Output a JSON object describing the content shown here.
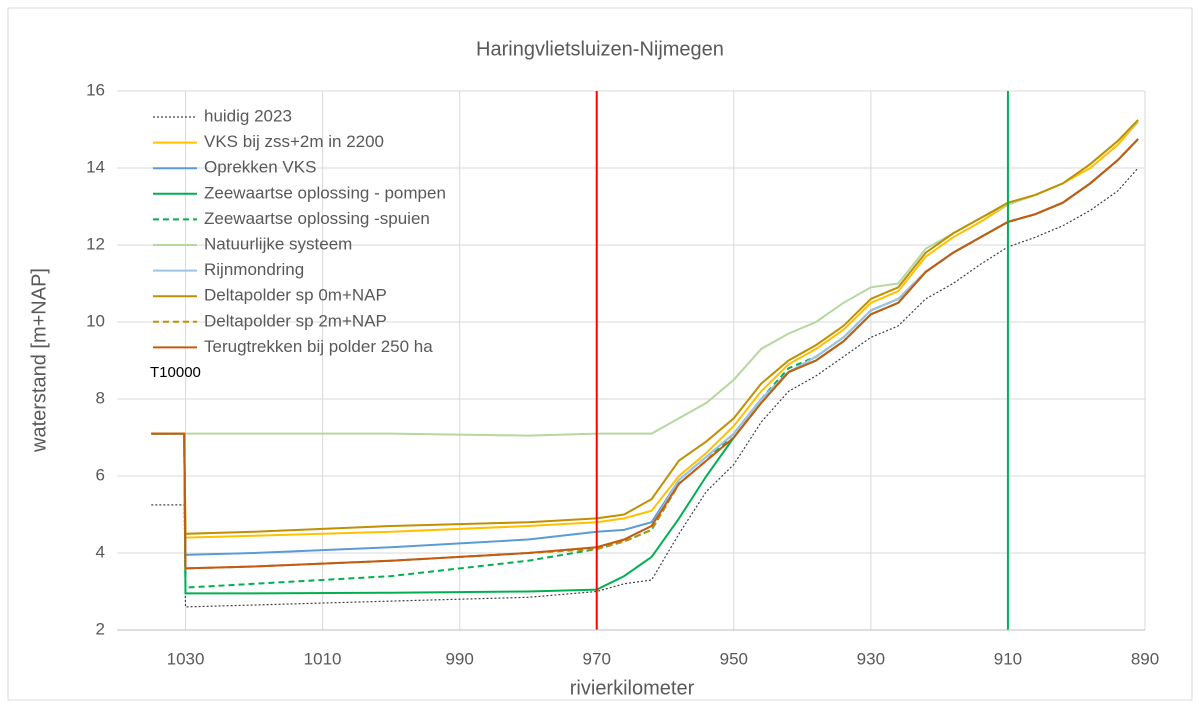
{
  "chart_data": {
    "type": "line",
    "title": "Haringvlietsluizen-Nijmegen",
    "x_label": "rivierkilometer",
    "y_label": "waterstand [m+NAP]",
    "annotation": "T10000",
    "x": [
      1035,
      1030.2,
      1030,
      1020,
      1000,
      980,
      970,
      966,
      962,
      958,
      954,
      950,
      946,
      942,
      938,
      934,
      930,
      926,
      922,
      918,
      914,
      910,
      906,
      902,
      898,
      894,
      891
    ],
    "series": [
      {
        "name": "huidig 2023",
        "color": "#404040",
        "dash": "dotted",
        "values": [
          5.25,
          5.25,
          2.6,
          2.65,
          2.75,
          2.85,
          3.0,
          3.2,
          3.3,
          4.5,
          5.6,
          6.3,
          7.4,
          8.2,
          8.6,
          9.1,
          9.6,
          9.9,
          10.6,
          11.0,
          11.5,
          11.95,
          12.2,
          12.5,
          12.9,
          13.4,
          14.0
        ]
      },
      {
        "name": "VKS bij zss+2m in 2200",
        "color": "#ffc000",
        "dash": "solid",
        "values": [
          7.1,
          7.1,
          4.4,
          4.45,
          4.55,
          4.7,
          4.8,
          4.9,
          5.1,
          6.0,
          6.6,
          7.3,
          8.2,
          8.9,
          9.3,
          9.8,
          10.5,
          10.8,
          11.7,
          12.2,
          12.6,
          13.05,
          13.3,
          13.6,
          14.0,
          14.6,
          15.2
        ]
      },
      {
        "name": "Oprekken VKS",
        "color": "#5b9bd5",
        "dash": "solid",
        "values": [
          7.1,
          7.1,
          3.95,
          4.0,
          4.15,
          4.35,
          4.55,
          4.6,
          4.8,
          5.9,
          6.5,
          7.1,
          8.0,
          8.7,
          9.1,
          9.6,
          10.3,
          10.6,
          11.3,
          11.8,
          12.2,
          12.6,
          12.8,
          13.1,
          13.6,
          14.2,
          14.75
        ]
      },
      {
        "name": "Zeewaartse oplossing - pompen",
        "color": "#00b050",
        "dash": "solid",
        "values": [
          7.1,
          7.1,
          2.95,
          2.95,
          2.97,
          3.0,
          3.05,
          3.4,
          3.9,
          4.9,
          6.0,
          7.0,
          7.9,
          8.7,
          9.0,
          9.5,
          10.2,
          10.5,
          11.3,
          11.8,
          12.2,
          12.6,
          12.8,
          13.1,
          13.6,
          14.2,
          14.75
        ]
      },
      {
        "name": "Zeewaartse oplossing -spuien",
        "color": "#00b050",
        "dash": "dashed",
        "values": [
          7.1,
          7.1,
          3.1,
          3.2,
          3.4,
          3.8,
          4.1,
          4.3,
          4.6,
          5.8,
          6.4,
          7.1,
          8.0,
          8.8,
          9.1,
          9.6,
          10.3,
          10.6,
          11.3,
          11.8,
          12.2,
          12.6,
          12.8,
          13.1,
          13.6,
          14.2,
          14.75
        ]
      },
      {
        "name": "Natuurlijke systeem",
        "color": "#b4d8a0",
        "dash": "solid",
        "values": [
          7.1,
          7.1,
          7.1,
          7.1,
          7.1,
          7.05,
          7.1,
          7.1,
          7.1,
          7.5,
          7.9,
          8.5,
          9.3,
          9.7,
          10.0,
          10.5,
          10.9,
          11.0,
          11.9,
          12.3,
          12.7,
          13.05,
          13.3,
          13.6,
          14.1,
          14.7,
          15.2
        ]
      },
      {
        "name": "Rijnmondring",
        "color": "#9dc3e6",
        "dash": "solid",
        "values": [
          7.1,
          7.1,
          3.6,
          3.65,
          3.8,
          4.0,
          4.15,
          4.35,
          4.7,
          5.9,
          6.5,
          7.1,
          8.0,
          8.7,
          9.1,
          9.6,
          10.3,
          10.6,
          11.3,
          11.8,
          12.2,
          12.6,
          12.8,
          13.1,
          13.6,
          14.2,
          14.75
        ]
      },
      {
        "name": "Deltapolder sp 0m+NAP",
        "color": "#bf9000",
        "dash": "solid",
        "values": [
          7.1,
          7.1,
          4.5,
          4.55,
          4.7,
          4.8,
          4.9,
          5.0,
          5.4,
          6.4,
          6.9,
          7.5,
          8.4,
          9.0,
          9.4,
          9.9,
          10.6,
          10.9,
          11.8,
          12.3,
          12.7,
          13.1,
          13.3,
          13.6,
          14.1,
          14.7,
          15.25
        ]
      },
      {
        "name": "Deltapolder sp 2m+NAP",
        "color": "#bf9000",
        "dash": "dashed",
        "values": [
          7.1,
          7.1,
          3.6,
          3.65,
          3.8,
          4.0,
          4.1,
          4.3,
          4.6,
          5.8,
          6.4,
          7.0,
          7.9,
          8.7,
          9.0,
          9.5,
          10.2,
          10.5,
          11.3,
          11.8,
          12.2,
          12.6,
          12.8,
          13.1,
          13.6,
          14.2,
          14.75
        ]
      },
      {
        "name": "Terugtrekken bij polder 250 ha",
        "color": "#c55a11",
        "dash": "solid",
        "values": [
          7.1,
          7.1,
          3.6,
          3.65,
          3.8,
          4.0,
          4.15,
          4.35,
          4.7,
          5.8,
          6.4,
          7.0,
          7.9,
          8.7,
          9.0,
          9.5,
          10.2,
          10.5,
          11.3,
          11.8,
          12.2,
          12.6,
          12.8,
          13.1,
          13.6,
          14.2,
          14.75
        ]
      }
    ],
    "vlines": [
      {
        "x": 970,
        "color": "#ff0000"
      },
      {
        "x": 910,
        "color": "#00b050"
      }
    ],
    "xlim": [
      1040,
      890
    ],
    "xticks": [
      1030,
      1010,
      990,
      970,
      950,
      930,
      910,
      890
    ],
    "ylim": [
      2,
      16
    ],
    "yticks": [
      2,
      4,
      6,
      8,
      10,
      12,
      14,
      16
    ],
    "grid": true,
    "legend": "upper-left"
  }
}
